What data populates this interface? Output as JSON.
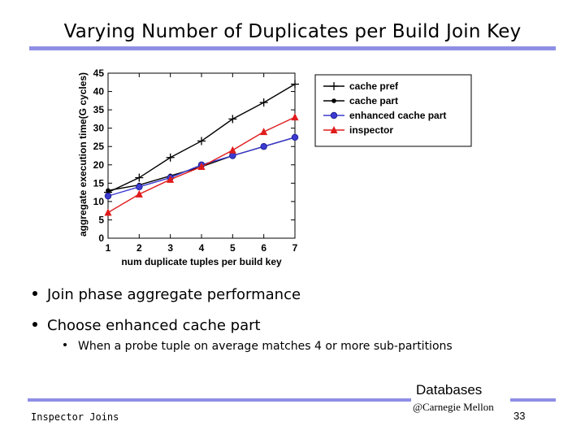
{
  "slide": {
    "title": "Varying Number of Duplicates per Build Join Key",
    "bullets": [
      "Join phase aggregate performance",
      "Choose enhanced cache part"
    ],
    "sub_bullet": "When a probe tuple on average matches 4 or more sub-partitions",
    "footer_left": "Inspector Joins",
    "brand_top": "Databases",
    "brand_bottom": "@Carnegie Mellon",
    "page_number": "33",
    "colors": {
      "rule": "#8f8fe6",
      "series_blue": "#3b3bd1",
      "series_red": "#e01b1b",
      "series_black": "#000000"
    }
  },
  "chart_data": {
    "type": "line",
    "title": "",
    "xlabel": "num duplicate tuples per build key",
    "ylabel": "aggregate execution time(G cycles)",
    "x": [
      1,
      2,
      3,
      4,
      5,
      6,
      7
    ],
    "xlim": [
      1,
      7
    ],
    "ylim": [
      0,
      45
    ],
    "x_ticks": [
      "1",
      "2",
      "3",
      "4",
      "5",
      "6",
      "7"
    ],
    "y_ticks": [
      "0",
      "5",
      "10",
      "15",
      "20",
      "25",
      "30",
      "35",
      "40",
      "45"
    ],
    "legend_position": "top-right",
    "grid": false,
    "series": [
      {
        "name": "cache pref",
        "values": [
          12.5,
          16.5,
          22.0,
          26.5,
          32.5,
          37.0,
          42.0
        ],
        "color": "#000000",
        "marker": "plus"
      },
      {
        "name": "cache part",
        "values": [
          13.0,
          14.5,
          17.0,
          19.5,
          22.5,
          25.0,
          27.5
        ],
        "color": "#000000",
        "marker": "dot"
      },
      {
        "name": "enhanced cache part",
        "values": [
          11.5,
          14.0,
          16.5,
          20.0,
          22.5,
          25.0,
          27.5
        ],
        "color": "#3b3bd1",
        "marker": "circle"
      },
      {
        "name": "inspector",
        "values": [
          7.0,
          12.0,
          16.0,
          19.5,
          24.0,
          29.0,
          33.0
        ],
        "color": "#e01b1b",
        "marker": "triangle"
      }
    ]
  }
}
